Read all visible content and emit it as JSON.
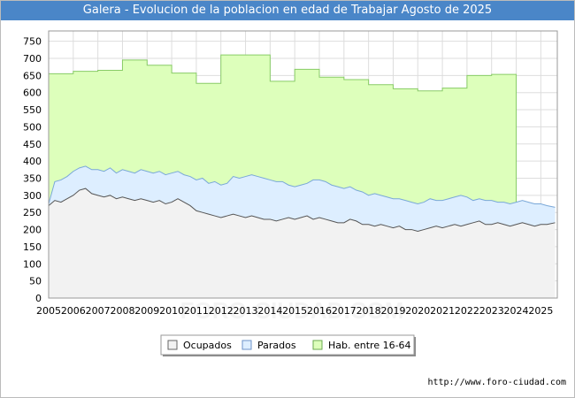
{
  "title": "Galera - Evolucion de la poblacion en edad de Trabajar Agosto de 2025",
  "source": "http://www.foro-ciudad.com",
  "watermark": "FORO-CIUDAD.COM",
  "colors": {
    "title_bg": "#4a86c8",
    "ocupados_fill": "#f2f2f2",
    "ocupados_line": "#555555",
    "parados_fill": "#ddeeff",
    "parados_line": "#7aa8d8",
    "hab_fill": "#ddffbb",
    "hab_line": "#88cc66",
    "grid": "#dddddd"
  },
  "chart_data": {
    "type": "area",
    "title": "Galera - Evolucion de la poblacion en edad de Trabajar Agosto de 2025",
    "xlabel": "",
    "ylabel": "",
    "xlim": [
      2005,
      2025.67
    ],
    "ylim": [
      0,
      780
    ],
    "yticks": [
      0,
      50,
      100,
      150,
      200,
      250,
      300,
      350,
      400,
      450,
      500,
      550,
      600,
      650,
      700,
      750
    ],
    "xticks": [
      "2005",
      "2006",
      "2007",
      "2008",
      "2009",
      "2010",
      "2011",
      "2012",
      "2013",
      "2014",
      "2015",
      "2016",
      "2017",
      "2018",
      "2019",
      "2020",
      "2021",
      "2022",
      "2023",
      "2024",
      "2025"
    ],
    "grid": true,
    "legend": [
      "Ocupados",
      "Parados",
      "Hab. entre 16-64"
    ],
    "legend_position": "bottom-center",
    "series": [
      {
        "name": "Hab. entre 16-64",
        "kind": "step",
        "x": [
          2005,
          2006,
          2007,
          2008,
          2009,
          2010,
          2011,
          2012,
          2013,
          2014,
          2015,
          2016,
          2017,
          2018,
          2019,
          2020,
          2021,
          2022,
          2023,
          2024
        ],
        "values": [
          655,
          662,
          665,
          695,
          680,
          657,
          627,
          710,
          710,
          633,
          668,
          645,
          638,
          623,
          611,
          605,
          613,
          650,
          653,
          null
        ]
      },
      {
        "name": "Parados",
        "kind": "stacked-total",
        "x": [
          2005.0,
          2005.25,
          2005.5,
          2005.75,
          2006.0,
          2006.25,
          2006.5,
          2006.75,
          2007.0,
          2007.25,
          2007.5,
          2007.75,
          2008.0,
          2008.25,
          2008.5,
          2008.75,
          2009.0,
          2009.25,
          2009.5,
          2009.75,
          2010.0,
          2010.25,
          2010.5,
          2010.75,
          2011.0,
          2011.25,
          2011.5,
          2011.75,
          2012.0,
          2012.25,
          2012.5,
          2012.75,
          2013.0,
          2013.25,
          2013.5,
          2013.75,
          2014.0,
          2014.25,
          2014.5,
          2014.75,
          2015.0,
          2015.25,
          2015.5,
          2015.75,
          2016.0,
          2016.25,
          2016.5,
          2016.75,
          2017.0,
          2017.25,
          2017.5,
          2017.75,
          2018.0,
          2018.25,
          2018.5,
          2018.75,
          2019.0,
          2019.25,
          2019.5,
          2019.75,
          2020.0,
          2020.25,
          2020.5,
          2020.75,
          2021.0,
          2021.25,
          2021.5,
          2021.75,
          2022.0,
          2022.25,
          2022.5,
          2022.75,
          2023.0,
          2023.25,
          2023.5,
          2023.75,
          2024.0,
          2024.25,
          2024.5,
          2024.75,
          2025.0,
          2025.25,
          2025.58
        ],
        "values": [
          275,
          340,
          345,
          355,
          370,
          380,
          385,
          375,
          375,
          370,
          380,
          365,
          375,
          370,
          365,
          375,
          370,
          365,
          370,
          360,
          365,
          370,
          360,
          355,
          345,
          350,
          335,
          340,
          330,
          335,
          355,
          350,
          355,
          360,
          355,
          350,
          345,
          340,
          340,
          330,
          325,
          330,
          335,
          345,
          345,
          340,
          330,
          325,
          320,
          325,
          315,
          310,
          300,
          305,
          300,
          295,
          290,
          290,
          285,
          280,
          275,
          280,
          290,
          285,
          285,
          290,
          295,
          300,
          295,
          285,
          290,
          285,
          285,
          280,
          280,
          275,
          280,
          285,
          280,
          275,
          275,
          270,
          265
        ]
      },
      {
        "name": "Ocupados",
        "kind": "stacked-base",
        "x": [
          2005.0,
          2005.25,
          2005.5,
          2005.75,
          2006.0,
          2006.25,
          2006.5,
          2006.75,
          2007.0,
          2007.25,
          2007.5,
          2007.75,
          2008.0,
          2008.25,
          2008.5,
          2008.75,
          2009.0,
          2009.25,
          2009.5,
          2009.75,
          2010.0,
          2010.25,
          2010.5,
          2010.75,
          2011.0,
          2011.25,
          2011.5,
          2011.75,
          2012.0,
          2012.25,
          2012.5,
          2012.75,
          2013.0,
          2013.25,
          2013.5,
          2013.75,
          2014.0,
          2014.25,
          2014.5,
          2014.75,
          2015.0,
          2015.25,
          2015.5,
          2015.75,
          2016.0,
          2016.25,
          2016.5,
          2016.75,
          2017.0,
          2017.25,
          2017.5,
          2017.75,
          2018.0,
          2018.25,
          2018.5,
          2018.75,
          2019.0,
          2019.25,
          2019.5,
          2019.75,
          2020.0,
          2020.25,
          2020.5,
          2020.75,
          2021.0,
          2021.25,
          2021.5,
          2021.75,
          2022.0,
          2022.25,
          2022.5,
          2022.75,
          2023.0,
          2023.25,
          2023.5,
          2023.75,
          2024.0,
          2024.25,
          2024.5,
          2024.75,
          2025.0,
          2025.25,
          2025.58
        ],
        "values": [
          270,
          285,
          280,
          290,
          300,
          315,
          320,
          305,
          300,
          295,
          300,
          290,
          295,
          290,
          285,
          290,
          285,
          280,
          285,
          275,
          280,
          290,
          280,
          270,
          255,
          250,
          245,
          240,
          235,
          240,
          245,
          240,
          235,
          240,
          235,
          230,
          230,
          225,
          230,
          235,
          230,
          235,
          240,
          230,
          235,
          230,
          225,
          220,
          220,
          230,
          225,
          215,
          215,
          210,
          215,
          210,
          205,
          210,
          200,
          200,
          195,
          200,
          205,
          210,
          205,
          210,
          215,
          210,
          215,
          220,
          225,
          215,
          215,
          220,
          215,
          210,
          215,
          220,
          215,
          210,
          215,
          215,
          220
        ]
      }
    ]
  }
}
